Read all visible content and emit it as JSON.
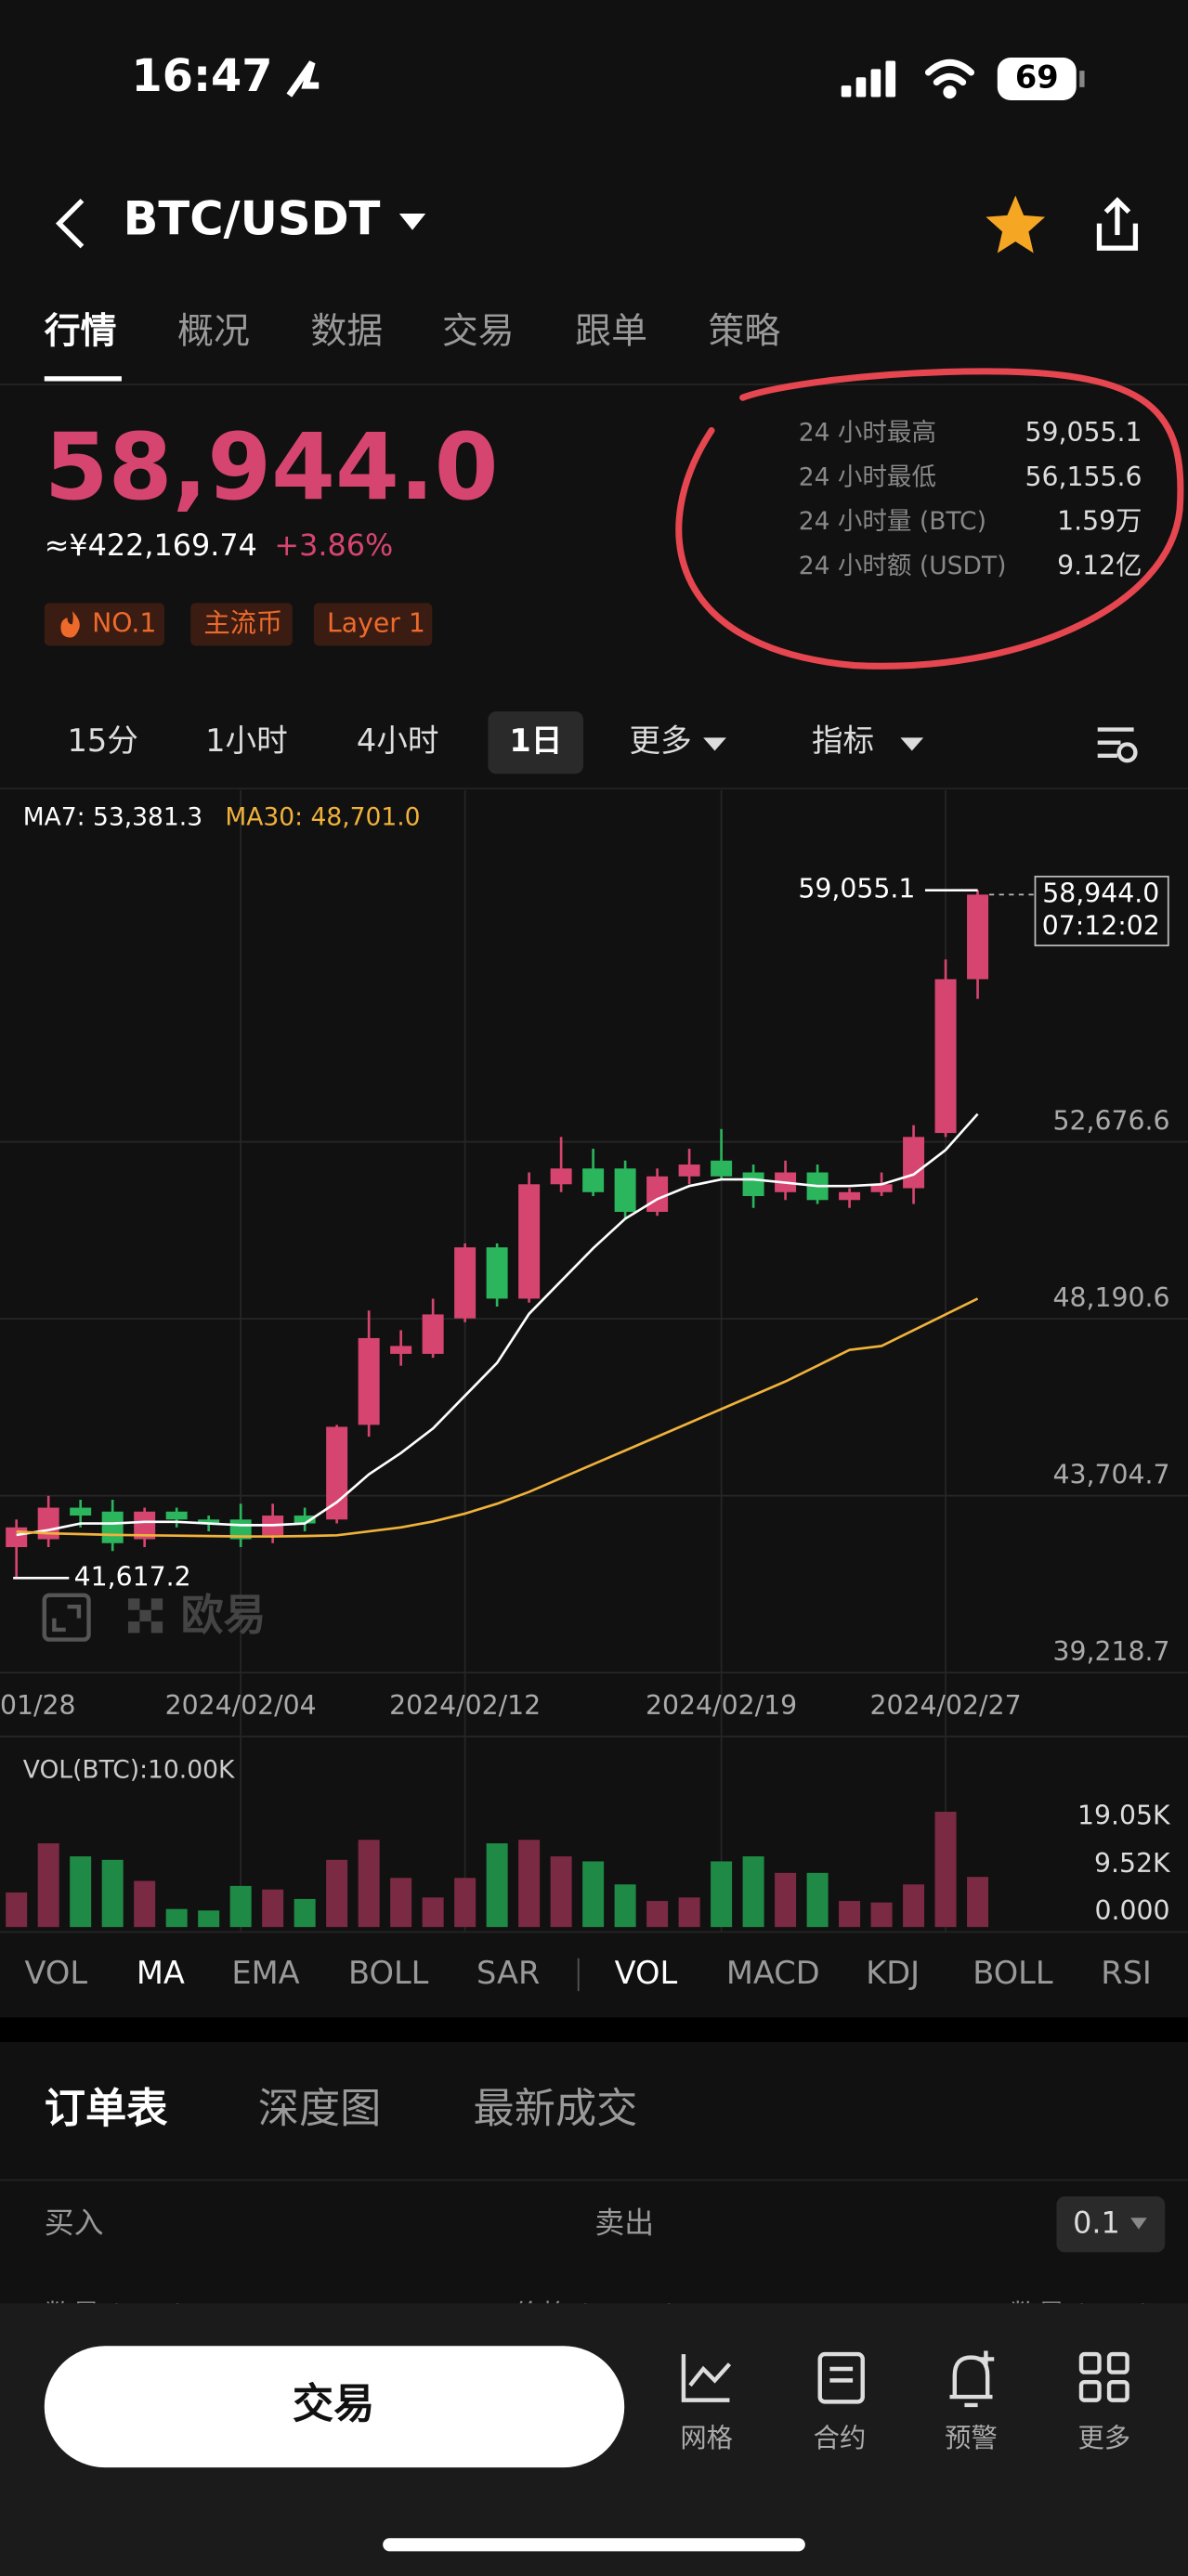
{
  "status_bar": {
    "time": "16:47",
    "battery": "69"
  },
  "header": {
    "pair": "BTC/USDT"
  },
  "tabs": [
    "行情",
    "概况",
    "数据",
    "交易",
    "跟单",
    "策略"
  ],
  "ticker": {
    "price": "58,944.0",
    "cny": "≈¥422,169.74",
    "change": "+3.86%",
    "tags": [
      "NO.1",
      "主流币",
      "Layer 1"
    ]
  },
  "stats": [
    {
      "label": "24 小时最高",
      "value": "59,055.1"
    },
    {
      "label": "24 小时最低",
      "value": "56,155.6"
    },
    {
      "label": "24 小时量 (BTC)",
      "value": "1.59万"
    },
    {
      "label": "24 小时额 (USDT)",
      "value": "9.12亿"
    }
  ],
  "intervals": [
    "15分",
    "1小时",
    "4小时",
    "1日",
    "更多",
    "指标"
  ],
  "chart_data": {
    "type": "candlestick",
    "categories": [
      "01/28",
      null,
      null,
      null,
      null,
      null,
      null,
      "2024/02/04",
      null,
      null,
      null,
      null,
      null,
      null,
      "2024/02/12",
      null,
      null,
      null,
      null,
      null,
      null,
      null,
      "2024/02/19",
      null,
      null,
      null,
      null,
      null,
      null,
      "2024/02/27",
      null
    ],
    "open": [
      42400,
      42600,
      43400,
      43300,
      42600,
      43300,
      43100,
      43100,
      42700,
      43200,
      43100,
      45500,
      47300,
      47300,
      48200,
      50000,
      48700,
      51600,
      52000,
      52000,
      50900,
      51800,
      52200,
      51900,
      51400,
      51900,
      51200,
      51400,
      51500,
      52900,
      56800
    ],
    "high": [
      43100,
      43700,
      43600,
      43600,
      43400,
      43400,
      43200,
      43500,
      43500,
      43400,
      45500,
      48400,
      47900,
      48700,
      50100,
      50100,
      51900,
      52800,
      52500,
      52200,
      52000,
      52500,
      53000,
      52100,
      52200,
      52100,
      51500,
      51900,
      53100,
      57300,
      59055.1
    ],
    "low": [
      41617.2,
      42400,
      42900,
      42300,
      42400,
      42900,
      42800,
      42400,
      42500,
      42800,
      43000,
      45200,
      47000,
      47200,
      48100,
      48500,
      48600,
      51400,
      51300,
      50700,
      50800,
      51600,
      51700,
      51000,
      51200,
      51100,
      51000,
      51300,
      51100,
      52800,
      56300
    ],
    "close": [
      42900,
      43400,
      43200,
      42500,
      43300,
      43100,
      43000,
      42600,
      43200,
      43000,
      45450,
      47700,
      47500,
      48300,
      50000,
      48700,
      51600,
      52000,
      51400,
      50900,
      51800,
      52100,
      51800,
      51300,
      51900,
      51200,
      51400,
      51600,
      52800,
      56800,
      58944.0
    ],
    "up_color": "#d6456f",
    "down_color": "#2bb55c",
    "series": [
      {
        "name": "MA7: 53,381.3",
        "color": "#ffffff",
        "values": [
          42709,
          42833,
          42999,
          42999,
          43041,
          43041,
          42999,
          42957,
          42957,
          42999,
          43539,
          44245,
          44786,
          45408,
          46239,
          47070,
          48316,
          49147,
          49978,
          50726,
          51224,
          51556,
          51723,
          51723,
          51640,
          51556,
          51556,
          51598,
          51847,
          52470,
          53381.3
        ]
      },
      {
        "name": "MA30: 48,701.0",
        "color": "#f0b23a",
        "values": [
          42792,
          42750,
          42730,
          42710,
          42700,
          42690,
          42680,
          42670,
          42670,
          42680,
          42700,
          42800,
          42900,
          43050,
          43250,
          43500,
          43800,
          44150,
          44500,
          44850,
          45200,
          45550,
          45900,
          46250,
          46600,
          47000,
          47400,
          47500,
          47900,
          48300,
          48701.0
        ]
      }
    ],
    "ylim": [
      39140,
      61590
    ],
    "yticks": [
      {
        "value": 39218.7,
        "label": "39,218.7"
      },
      {
        "value": 43704.7,
        "label": "43,704.7"
      },
      {
        "value": 48190.6,
        "label": "48,190.6"
      },
      {
        "value": 52676.6,
        "label": "52,676.6"
      }
    ],
    "grid": true,
    "high_marker": {
      "value": 59055.1,
      "label": "59,055.1"
    },
    "low_marker": {
      "value": 41617.2,
      "label": "41,617.2"
    },
    "last_price": {
      "value": 58944.0,
      "label": "58,944.0",
      "time": "07:12:02"
    },
    "watermark": "欧易",
    "volume": {
      "title": "VOL(BTC):10.00K",
      "values": [
        6900,
        16700,
        14100,
        13400,
        9200,
        3600,
        3300,
        8200,
        7500,
        5600,
        13400,
        17400,
        9800,
        5900,
        9800,
        16700,
        17400,
        14100,
        13100,
        8500,
        5200,
        5900,
        13100,
        14100,
        10800,
        10800,
        5200,
        4900,
        8500,
        23000,
        10000
      ],
      "up_color": "#7a2a42",
      "down_color": "#1f8a46",
      "ylim": [
        0,
        35400
      ],
      "yticks": [
        {
          "value": 0,
          "label": "0.000"
        },
        {
          "value": 9520,
          "label": "9.52K"
        },
        {
          "value": 19050,
          "label": "19.05K"
        }
      ]
    }
  },
  "indicators": {
    "main": [
      "VOL",
      "MA",
      "EMA",
      "BOLL",
      "SAR"
    ],
    "sub": [
      "VOL",
      "MACD",
      "KDJ",
      "BOLL",
      "RSI"
    ]
  },
  "order_book": {
    "tabs": [
      "订单表",
      "深度图",
      "最新成交"
    ],
    "buy": "买入",
    "sell": "卖出",
    "step": "0.1",
    "columns": [
      "数量 (BTC)",
      "价格 (USDT)",
      "数量 (BTC)"
    ]
  },
  "nav": {
    "trade": "交易",
    "items": [
      "网格",
      "合约",
      "预警",
      "更多"
    ]
  }
}
